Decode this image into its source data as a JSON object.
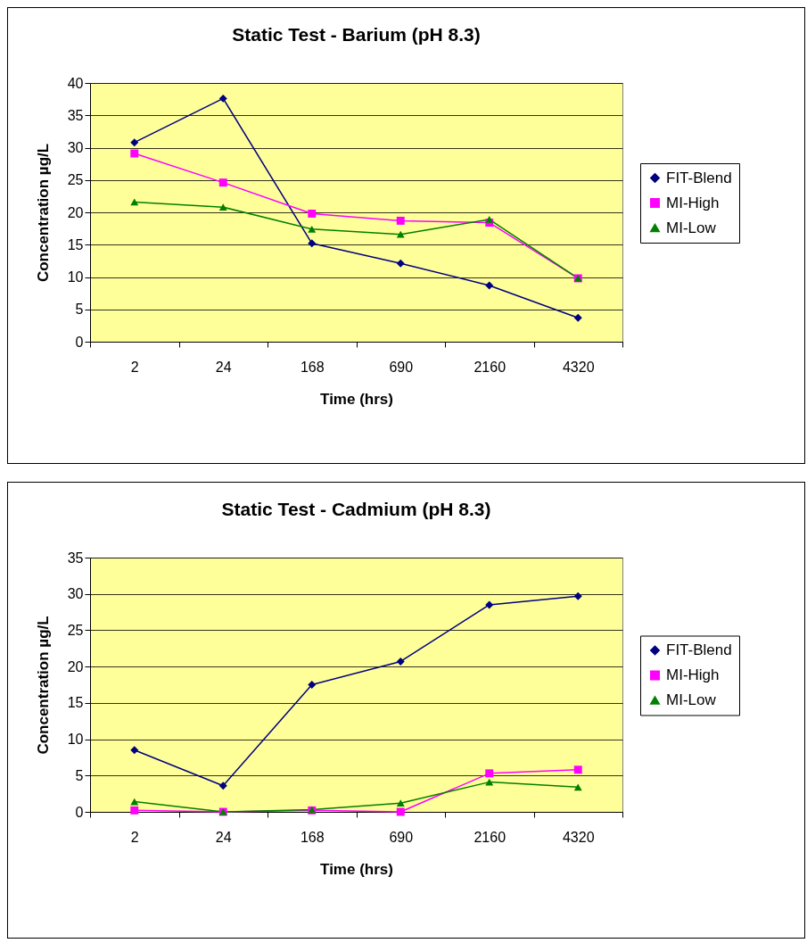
{
  "chart_data": [
    {
      "type": "line",
      "title": "Static Test - Barium (pH 8.3)",
      "xlabel": "Time (hrs)",
      "ylabel": "Concentration µg/L",
      "categories": [
        "2",
        "24",
        "168",
        "690",
        "2160",
        "4320"
      ],
      "series": [
        {
          "name": "FIT-Blend",
          "color": "#000080",
          "marker": "diamond",
          "values": [
            30.8,
            37.6,
            15.2,
            12.1,
            8.7,
            3.7
          ]
        },
        {
          "name": "MI-High",
          "color": "#ff00ff",
          "marker": "square",
          "values": [
            29.1,
            24.6,
            19.8,
            18.7,
            18.4,
            9.8
          ]
        },
        {
          "name": "MI-Low",
          "color": "#008000",
          "marker": "triangle",
          "values": [
            21.6,
            20.8,
            17.4,
            16.6,
            18.9,
            9.8
          ]
        }
      ],
      "ylim": [
        0,
        40
      ],
      "yticks": [
        0,
        5,
        10,
        15,
        20,
        25,
        30,
        35,
        40
      ],
      "grid": "y",
      "legend": "right"
    },
    {
      "type": "line",
      "title": "Static Test - Cadmium (pH 8.3)",
      "xlabel": "Time (hrs)",
      "ylabel": "Concentration µg/L",
      "categories": [
        "2",
        "24",
        "168",
        "690",
        "2160",
        "4320"
      ],
      "series": [
        {
          "name": "FIT-Blend",
          "color": "#000080",
          "marker": "diamond",
          "values": [
            8.5,
            3.6,
            17.5,
            20.7,
            28.5,
            29.7
          ]
        },
        {
          "name": "MI-High",
          "color": "#ff00ff",
          "marker": "square",
          "values": [
            0.2,
            0,
            0.2,
            0,
            5.3,
            5.8
          ]
        },
        {
          "name": "MI-Low",
          "color": "#008000",
          "marker": "triangle",
          "values": [
            1.4,
            0,
            0.3,
            1.2,
            4.1,
            3.4
          ]
        }
      ],
      "ylim": [
        0,
        35
      ],
      "yticks": [
        0,
        5,
        10,
        15,
        20,
        25,
        30,
        35
      ],
      "grid": "y",
      "legend": "right"
    }
  ]
}
